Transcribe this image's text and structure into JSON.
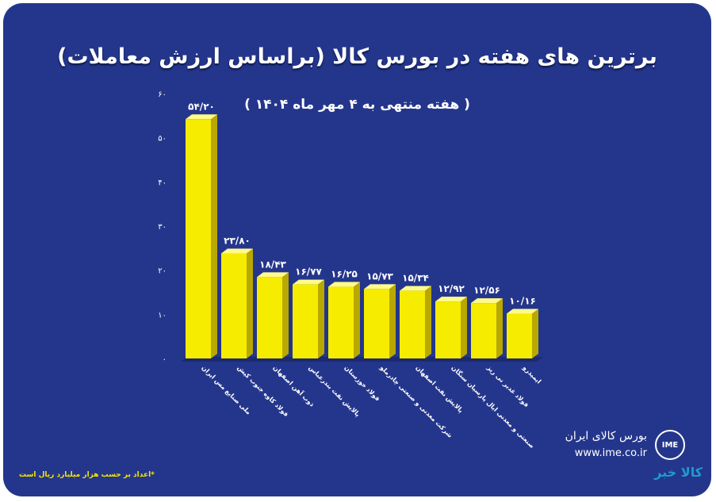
{
  "chart_data": {
    "type": "bar",
    "title": "برترین های هفته در بورس کالا (براساس ارزش معاملات)",
    "subtitle": "( هفته منتهی به ۴ مهر ماه ۱۴۰۴ )",
    "categories": [
      "ملی صنایع مس ایران",
      "فولاد کاوه جنوب کیش",
      "ذوب آهن اصفهان",
      "پالایش نفت بندرعباس",
      "فولاد خوزستان",
      "شرکت معدنی و صنعتی چادرملو",
      "پالایش نفت اصفهان",
      "صنعتی و معدنی ایال پارسیان سنگان",
      "فولاد غدیر نی ریز",
      "ایمیدرو"
    ],
    "values": [
      54.2,
      23.8,
      18.43,
      16.77,
      16.25,
      15.73,
      15.34,
      12.92,
      12.56,
      10.16
    ],
    "value_labels": [
      "۵۴/۲۰",
      "۲۳/۸۰",
      "۱۸/۴۳",
      "۱۶/۷۷",
      "۱۶/۲۵",
      "۱۵/۷۳",
      "۱۵/۳۴",
      "۱۲/۹۲",
      "۱۲/۵۶",
      "۱۰/۱۶"
    ],
    "y_ticks": [
      "۰",
      "۱۰",
      "۲۰",
      "۳۰",
      "۴۰",
      "۵۰",
      "۶۰"
    ],
    "ylim": [
      0,
      60
    ],
    "colors": {
      "bar_front": "#f6ec00",
      "bar_side": "#b9a800",
      "bar_top": "#fffb8a",
      "background": "#24368c",
      "floor": "#1c2a6e"
    }
  },
  "footnote": "*اعداد بر حسب هزار میلیارد ریال است",
  "brand": {
    "name": "بورس کالای ایران",
    "url": "www.ime.co.ir",
    "logo_text": "IME",
    "logo_icon": "ime-logo-icon"
  },
  "watermark": {
    "text": "کالا خبر",
    "icon": "kala-khabar-logo-icon"
  }
}
